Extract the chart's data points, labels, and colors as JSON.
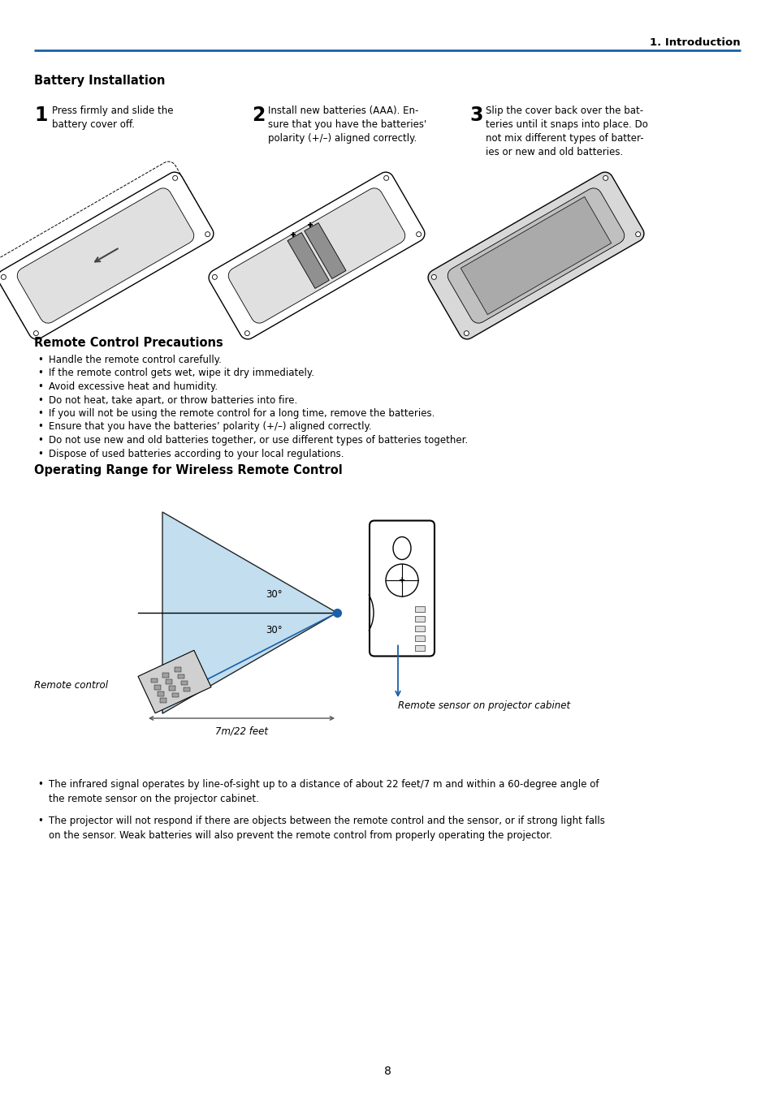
{
  "page_header": "1. Introduction",
  "header_line_color": "#1a5fa8",
  "section1_title": "Battery Installation",
  "step1_number": "1",
  "step1_text": "Press firmly and slide the\nbattery cover off.",
  "step2_number": "2",
  "step2_text": "Install new batteries (AAA). En-\nsure that you have the batteries'\npolarity (+/–) aligned correctly.",
  "step3_number": "3",
  "step3_text": "Slip the cover back over the bat-\nteries until it snaps into place. Do\nnot mix different types of batter-\nies or new and old batteries.",
  "section2_title": "Remote Control Precautions",
  "precautions": [
    "Handle the remote control carefully.",
    "If the remote control gets wet, wipe it dry immediately.",
    "Avoid excessive heat and humidity.",
    "Do not heat, take apart, or throw batteries into fire.",
    "If you will not be using the remote control for a long time, remove the batteries.",
    "Ensure that you have the batteries’ polarity (+/–) aligned correctly.",
    "Do not use new and old batteries together, or use different types of batteries together.",
    "Dispose of used batteries according to your local regulations."
  ],
  "section3_title": "Operating Range for Wireless Remote Control",
  "diagram_label_remote": "Remote control",
  "diagram_label_sensor": "Remote sensor on projector cabinet",
  "diagram_label_distance": "7m/22 feet",
  "diagram_angle_upper": "30°",
  "diagram_angle_lower": "30°",
  "bullet_text1": "The infrared signal operates by line-of-sight up to a distance of about 22 feet/7 m and within a 60-degree angle of\nthe remote sensor on the projector cabinet.",
  "bullet_text2": "The projector will not respond if there are objects between the remote control and the sensor, or if strong light falls\non the sensor. Weak batteries will also prevent the remote control from properly operating the projector.",
  "page_number": "8",
  "bg_color": "#ffffff",
  "text_color": "#000000",
  "blue_color": "#1a5fa8",
  "light_blue": "#b8d9ed"
}
